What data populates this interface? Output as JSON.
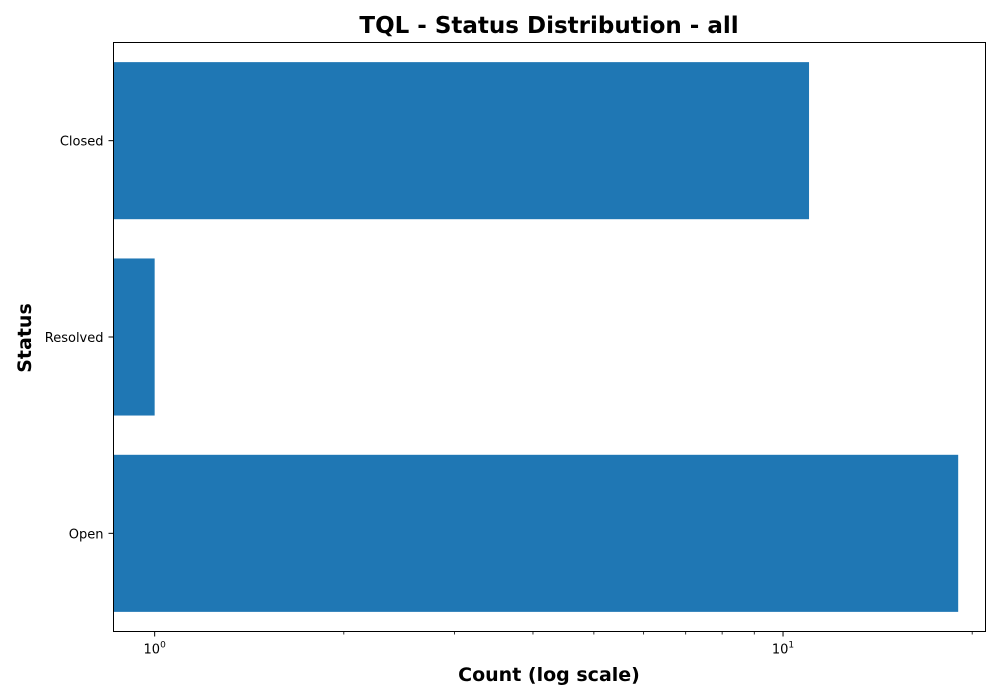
{
  "chart_data": {
    "type": "bar",
    "orientation": "horizontal",
    "title": "TQL - Status Distribution - all",
    "xlabel": "Count (log scale)",
    "ylabel": "Status",
    "x_scale": "log",
    "xlim": [
      0.86,
      21
    ],
    "grid": false,
    "categories": [
      "Closed",
      "Resolved",
      "Open"
    ],
    "values": [
      11,
      1,
      19
    ],
    "x_major_ticks": [
      {
        "value": 1,
        "base": "10",
        "exponent": "0"
      },
      {
        "value": 10,
        "base": "10",
        "exponent": "1"
      }
    ],
    "x_minor_ticks": [
      2,
      3,
      4,
      5,
      6,
      7,
      8,
      9,
      20
    ],
    "bar_color": "#1f77b4",
    "axes_color": "#000000",
    "background_color": "#ffffff"
  }
}
